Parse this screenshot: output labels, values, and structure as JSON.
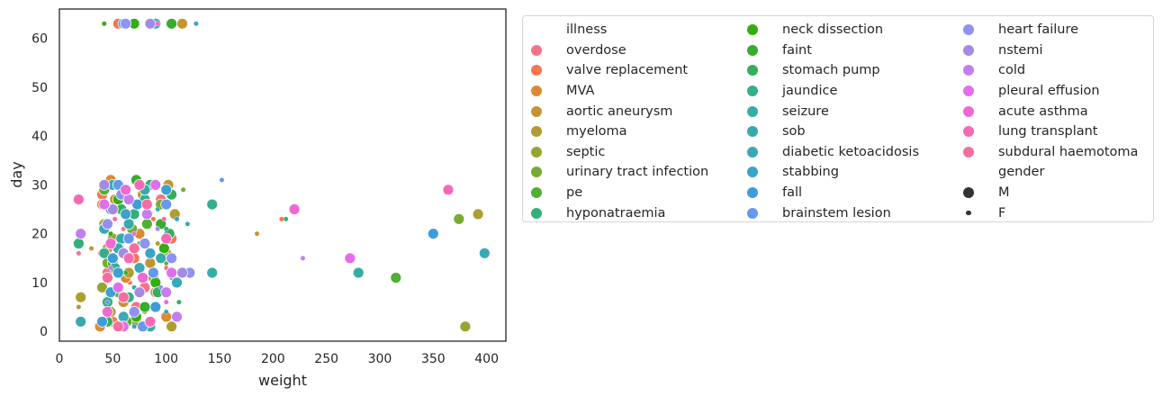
{
  "chart_data": {
    "type": "scatter",
    "xlabel": "weight",
    "ylabel": "day",
    "xlim": [
      0,
      418
    ],
    "ylim": [
      -2,
      66
    ],
    "xticks": [
      0,
      50,
      100,
      150,
      200,
      250,
      300,
      350,
      400
    ],
    "yticks": [
      0,
      10,
      20,
      30,
      40,
      50,
      60
    ],
    "grid": false,
    "legend_position": "right, outside plot",
    "hue_title": "illness",
    "size_title": "gender",
    "size_levels": [
      {
        "name": "M",
        "size": "large"
      },
      {
        "name": "F",
        "size": "small"
      }
    ],
    "series": [
      {
        "name": "overdose",
        "color": "#f77189",
        "points": [
          [
            62,
            63,
            "M"
          ],
          [
            45,
            12,
            "M"
          ],
          [
            60,
            21,
            "F"
          ],
          [
            80,
            9,
            "M"
          ],
          [
            95,
            27,
            "M"
          ],
          [
            38,
            16,
            "F"
          ],
          [
            72,
            5,
            "M"
          ],
          [
            100,
            13,
            "F"
          ]
        ]
      },
      {
        "name": "valve replacement",
        "color": "#f7754f",
        "points": [
          [
            55,
            63,
            "M"
          ],
          [
            50,
            2,
            "M"
          ],
          [
            70,
            15,
            "M"
          ],
          [
            88,
            23,
            "F"
          ],
          [
            40,
            28,
            "M"
          ],
          [
            105,
            19,
            "M"
          ],
          [
            66,
            10,
            "F"
          ],
          [
            208,
            23,
            "F"
          ]
        ]
      },
      {
        "name": "MVA",
        "color": "#dc8932",
        "points": [
          [
            40,
            26,
            "M"
          ],
          [
            38,
            1,
            "M"
          ],
          [
            48,
            31,
            "M"
          ],
          [
            62,
            11,
            "M"
          ],
          [
            75,
            20,
            "M"
          ],
          [
            90,
            8,
            "M"
          ],
          [
            55,
            25,
            "F"
          ],
          [
            100,
            3,
            "M"
          ],
          [
            45,
            17,
            "M"
          ]
        ]
      },
      {
        "name": "aortic aneurysm",
        "color": "#c39532",
        "points": [
          [
            115,
            63,
            "M"
          ],
          [
            52,
            27,
            "M"
          ],
          [
            85,
            14,
            "M"
          ],
          [
            60,
            6,
            "M"
          ],
          [
            102,
            30,
            "M"
          ],
          [
            42,
            22,
            "M"
          ],
          [
            185,
            20,
            "F"
          ],
          [
            30,
            17,
            "F"
          ]
        ]
      },
      {
        "name": "myeloma",
        "color": "#ae9d31",
        "points": [
          [
            20,
            7,
            "M"
          ],
          [
            65,
            12,
            "M"
          ],
          [
            92,
            18,
            "F"
          ],
          [
            48,
            4,
            "M"
          ],
          [
            78,
            28,
            "M"
          ],
          [
            108,
            24,
            "M"
          ],
          [
            392,
            24,
            "M"
          ],
          [
            105,
            1,
            "M"
          ],
          [
            18,
            5,
            "F"
          ]
        ]
      },
      {
        "name": "septic",
        "color": "#97a431",
        "points": [
          [
            380,
            1,
            "M"
          ],
          [
            50,
            19,
            "M"
          ],
          [
            72,
            2,
            "M"
          ],
          [
            88,
            11,
            "M"
          ],
          [
            58,
            29,
            "F"
          ],
          [
            100,
            16,
            "M"
          ],
          [
            40,
            9,
            "M"
          ]
        ]
      },
      {
        "name": "urinary tract infection",
        "color": "#77ab31",
        "points": [
          [
            374,
            23,
            "M"
          ],
          [
            116,
            29,
            "F"
          ],
          [
            45,
            14,
            "M"
          ],
          [
            68,
            21,
            "M"
          ],
          [
            95,
            26,
            "M"
          ],
          [
            80,
            4,
            "F"
          ]
        ]
      },
      {
        "name": "pe",
        "color": "#4fb031",
        "points": [
          [
            315,
            11,
            "M"
          ],
          [
            55,
            8,
            "M"
          ],
          [
            82,
            22,
            "M"
          ],
          [
            42,
            29,
            "M"
          ],
          [
            100,
            14,
            "F"
          ],
          [
            63,
            2,
            "M"
          ]
        ]
      },
      {
        "name": "hyponatraemia",
        "color": "#33b07a",
        "points": [
          [
            18,
            18,
            "M"
          ],
          [
            60,
            16,
            "M"
          ],
          [
            85,
            30,
            "M"
          ],
          [
            45,
            6,
            "M"
          ],
          [
            105,
            11,
            "F"
          ],
          [
            70,
            24,
            "M"
          ]
        ]
      },
      {
        "name": "neck dissection",
        "color": "#35ac0f",
        "points": [
          [
            42,
            63,
            "F"
          ],
          [
            70,
            63,
            "M"
          ],
          [
            55,
            27,
            "M"
          ],
          [
            90,
            10,
            "M"
          ],
          [
            48,
            20,
            "F"
          ],
          [
            72,
            3,
            "M"
          ],
          [
            98,
            17,
            "M"
          ]
        ]
      },
      {
        "name": "faint",
        "color": "#36ad2d",
        "points": [
          [
            72,
            31,
            "M"
          ],
          [
            105,
            63,
            "M"
          ],
          [
            50,
            14,
            "M"
          ],
          [
            80,
            5,
            "M"
          ],
          [
            95,
            22,
            "M"
          ],
          [
            62,
            12,
            "F"
          ]
        ]
      },
      {
        "name": "stomach pump",
        "color": "#35ae5a",
        "points": [
          [
            103,
            20,
            "M"
          ],
          [
            58,
            25,
            "M"
          ],
          [
            45,
            2,
            "M"
          ],
          [
            75,
            18,
            "F"
          ],
          [
            92,
            8,
            "M"
          ],
          [
            105,
            28,
            "M"
          ],
          [
            112,
            6,
            "F"
          ]
        ]
      },
      {
        "name": "jaundice",
        "color": "#34ae8d",
        "points": [
          [
            143,
            26,
            "M"
          ],
          [
            212,
            23,
            "F"
          ],
          [
            52,
            13,
            "M"
          ],
          [
            80,
            27,
            "M"
          ],
          [
            65,
            7,
            "M"
          ],
          [
            100,
            21,
            "F"
          ],
          [
            42,
            16,
            "M"
          ]
        ]
      },
      {
        "name": "seizure",
        "color": "#36ada4",
        "points": [
          [
            143,
            12,
            "M"
          ],
          [
            280,
            12,
            "M"
          ],
          [
            120,
            22,
            "F"
          ],
          [
            58,
            19,
            "M"
          ],
          [
            85,
            1,
            "M"
          ],
          [
            48,
            25,
            "M"
          ],
          [
            95,
            15,
            "M"
          ],
          [
            70,
            9,
            "F"
          ]
        ]
      },
      {
        "name": "sob",
        "color": "#38aaac",
        "points": [
          [
            20,
            2,
            "M"
          ],
          [
            90,
            63,
            "M"
          ],
          [
            65,
            22,
            "M"
          ],
          [
            45,
            11,
            "M"
          ],
          [
            80,
            29,
            "M"
          ],
          [
            100,
            4,
            "F"
          ],
          [
            55,
            17,
            "M"
          ]
        ]
      },
      {
        "name": "diabetic ketoacidosis",
        "color": "#3aa8b9",
        "points": [
          [
            398,
            16,
            "M"
          ],
          [
            50,
            30,
            "M"
          ],
          [
            75,
            13,
            "M"
          ],
          [
            92,
            25,
            "F"
          ],
          [
            60,
            3,
            "M"
          ],
          [
            110,
            10,
            "M"
          ],
          [
            42,
            21,
            "M"
          ]
        ]
      },
      {
        "name": "stabbing",
        "color": "#3ba3ca",
        "points": [
          [
            128,
            63,
            "F"
          ],
          [
            62,
            24,
            "M"
          ],
          [
            85,
            16,
            "M"
          ],
          [
            48,
            8,
            "M"
          ],
          [
            100,
            29,
            "M"
          ],
          [
            70,
            1,
            "F"
          ],
          [
            55,
            12,
            "M"
          ]
        ]
      },
      {
        "name": "fall",
        "color": "#3d9dd9",
        "points": [
          [
            350,
            20,
            "M"
          ],
          [
            60,
            63,
            "M"
          ],
          [
            73,
            26,
            "M"
          ],
          [
            50,
            15,
            "M"
          ],
          [
            90,
            5,
            "M"
          ],
          [
            110,
            23,
            "F"
          ],
          [
            40,
            2,
            "M"
          ]
        ]
      },
      {
        "name": "brainstem lesion",
        "color": "#6699ea",
        "points": [
          [
            152,
            31,
            "F"
          ],
          [
            55,
            30,
            "M"
          ],
          [
            88,
            12,
            "M"
          ],
          [
            65,
            19,
            "M"
          ],
          [
            45,
            6,
            "F"
          ],
          [
            100,
            26,
            "M"
          ],
          [
            78,
            1,
            "M"
          ]
        ]
      },
      {
        "name": "heart failure",
        "color": "#8e92f0",
        "points": [
          [
            122,
            12,
            "M"
          ],
          [
            62,
            63,
            "M"
          ],
          [
            45,
            22,
            "M"
          ],
          [
            80,
            18,
            "M"
          ],
          [
            95,
            9,
            "F"
          ],
          [
            58,
            28,
            "M"
          ],
          [
            105,
            15,
            "M"
          ],
          [
            70,
            4,
            "M"
          ]
        ]
      },
      {
        "name": "nstemi",
        "color": "#a48ae4",
        "points": [
          [
            115,
            12,
            "M"
          ],
          [
            85,
            63,
            "M"
          ],
          [
            50,
            25,
            "M"
          ],
          [
            75,
            8,
            "M"
          ],
          [
            92,
            21,
            "F"
          ],
          [
            60,
            16,
            "M"
          ],
          [
            42,
            30,
            "M"
          ]
        ]
      },
      {
        "name": "cold",
        "color": "#c47ef0",
        "points": [
          [
            228,
            15,
            "F"
          ],
          [
            20,
            20,
            "M"
          ],
          [
            65,
            27,
            "M"
          ],
          [
            100,
            8,
            "M"
          ],
          [
            48,
            13,
            "F"
          ],
          [
            82,
            24,
            "M"
          ],
          [
            110,
            3,
            "M"
          ]
        ]
      },
      {
        "name": "pleural effusion",
        "color": "#e26eec",
        "points": [
          [
            272,
            15,
            "M"
          ],
          [
            55,
            9,
            "M"
          ],
          [
            90,
            30,
            "M"
          ],
          [
            70,
            20,
            "F"
          ],
          [
            42,
            26,
            "M"
          ],
          [
            105,
            12,
            "M"
          ],
          [
            60,
            1,
            "M"
          ]
        ]
      },
      {
        "name": "acute asthma",
        "color": "#f068d1",
        "points": [
          [
            220,
            25,
            "M"
          ],
          [
            92,
            63,
            "F"
          ],
          [
            48,
            18,
            "M"
          ],
          [
            78,
            11,
            "M"
          ],
          [
            62,
            29,
            "M"
          ],
          [
            100,
            6,
            "F"
          ],
          [
            45,
            4,
            "M"
          ]
        ]
      },
      {
        "name": "lung transplant",
        "color": "#f56ab6",
        "points": [
          [
            364,
            29,
            "M"
          ],
          [
            18,
            27,
            "M"
          ],
          [
            65,
            15,
            "M"
          ],
          [
            85,
            2,
            "M"
          ],
          [
            52,
            23,
            "F"
          ],
          [
            100,
            19,
            "M"
          ],
          [
            75,
            30,
            "M"
          ]
        ]
      },
      {
        "name": "subdural haemotoma",
        "color": "#f66da0",
        "points": [
          [
            18,
            16,
            "F"
          ],
          [
            60,
            7,
            "M"
          ],
          [
            82,
            26,
            "M"
          ],
          [
            45,
            11,
            "M"
          ],
          [
            98,
            23,
            "F"
          ],
          [
            70,
            17,
            "M"
          ],
          [
            55,
            1,
            "M"
          ]
        ]
      }
    ]
  },
  "legend": {
    "hue_title": "illness",
    "size_title": "gender",
    "size_items": [
      {
        "label": "M"
      },
      {
        "label": "F"
      }
    ]
  },
  "colors": {
    "axis": "#262626",
    "legend_border": "#d6d6d6"
  }
}
